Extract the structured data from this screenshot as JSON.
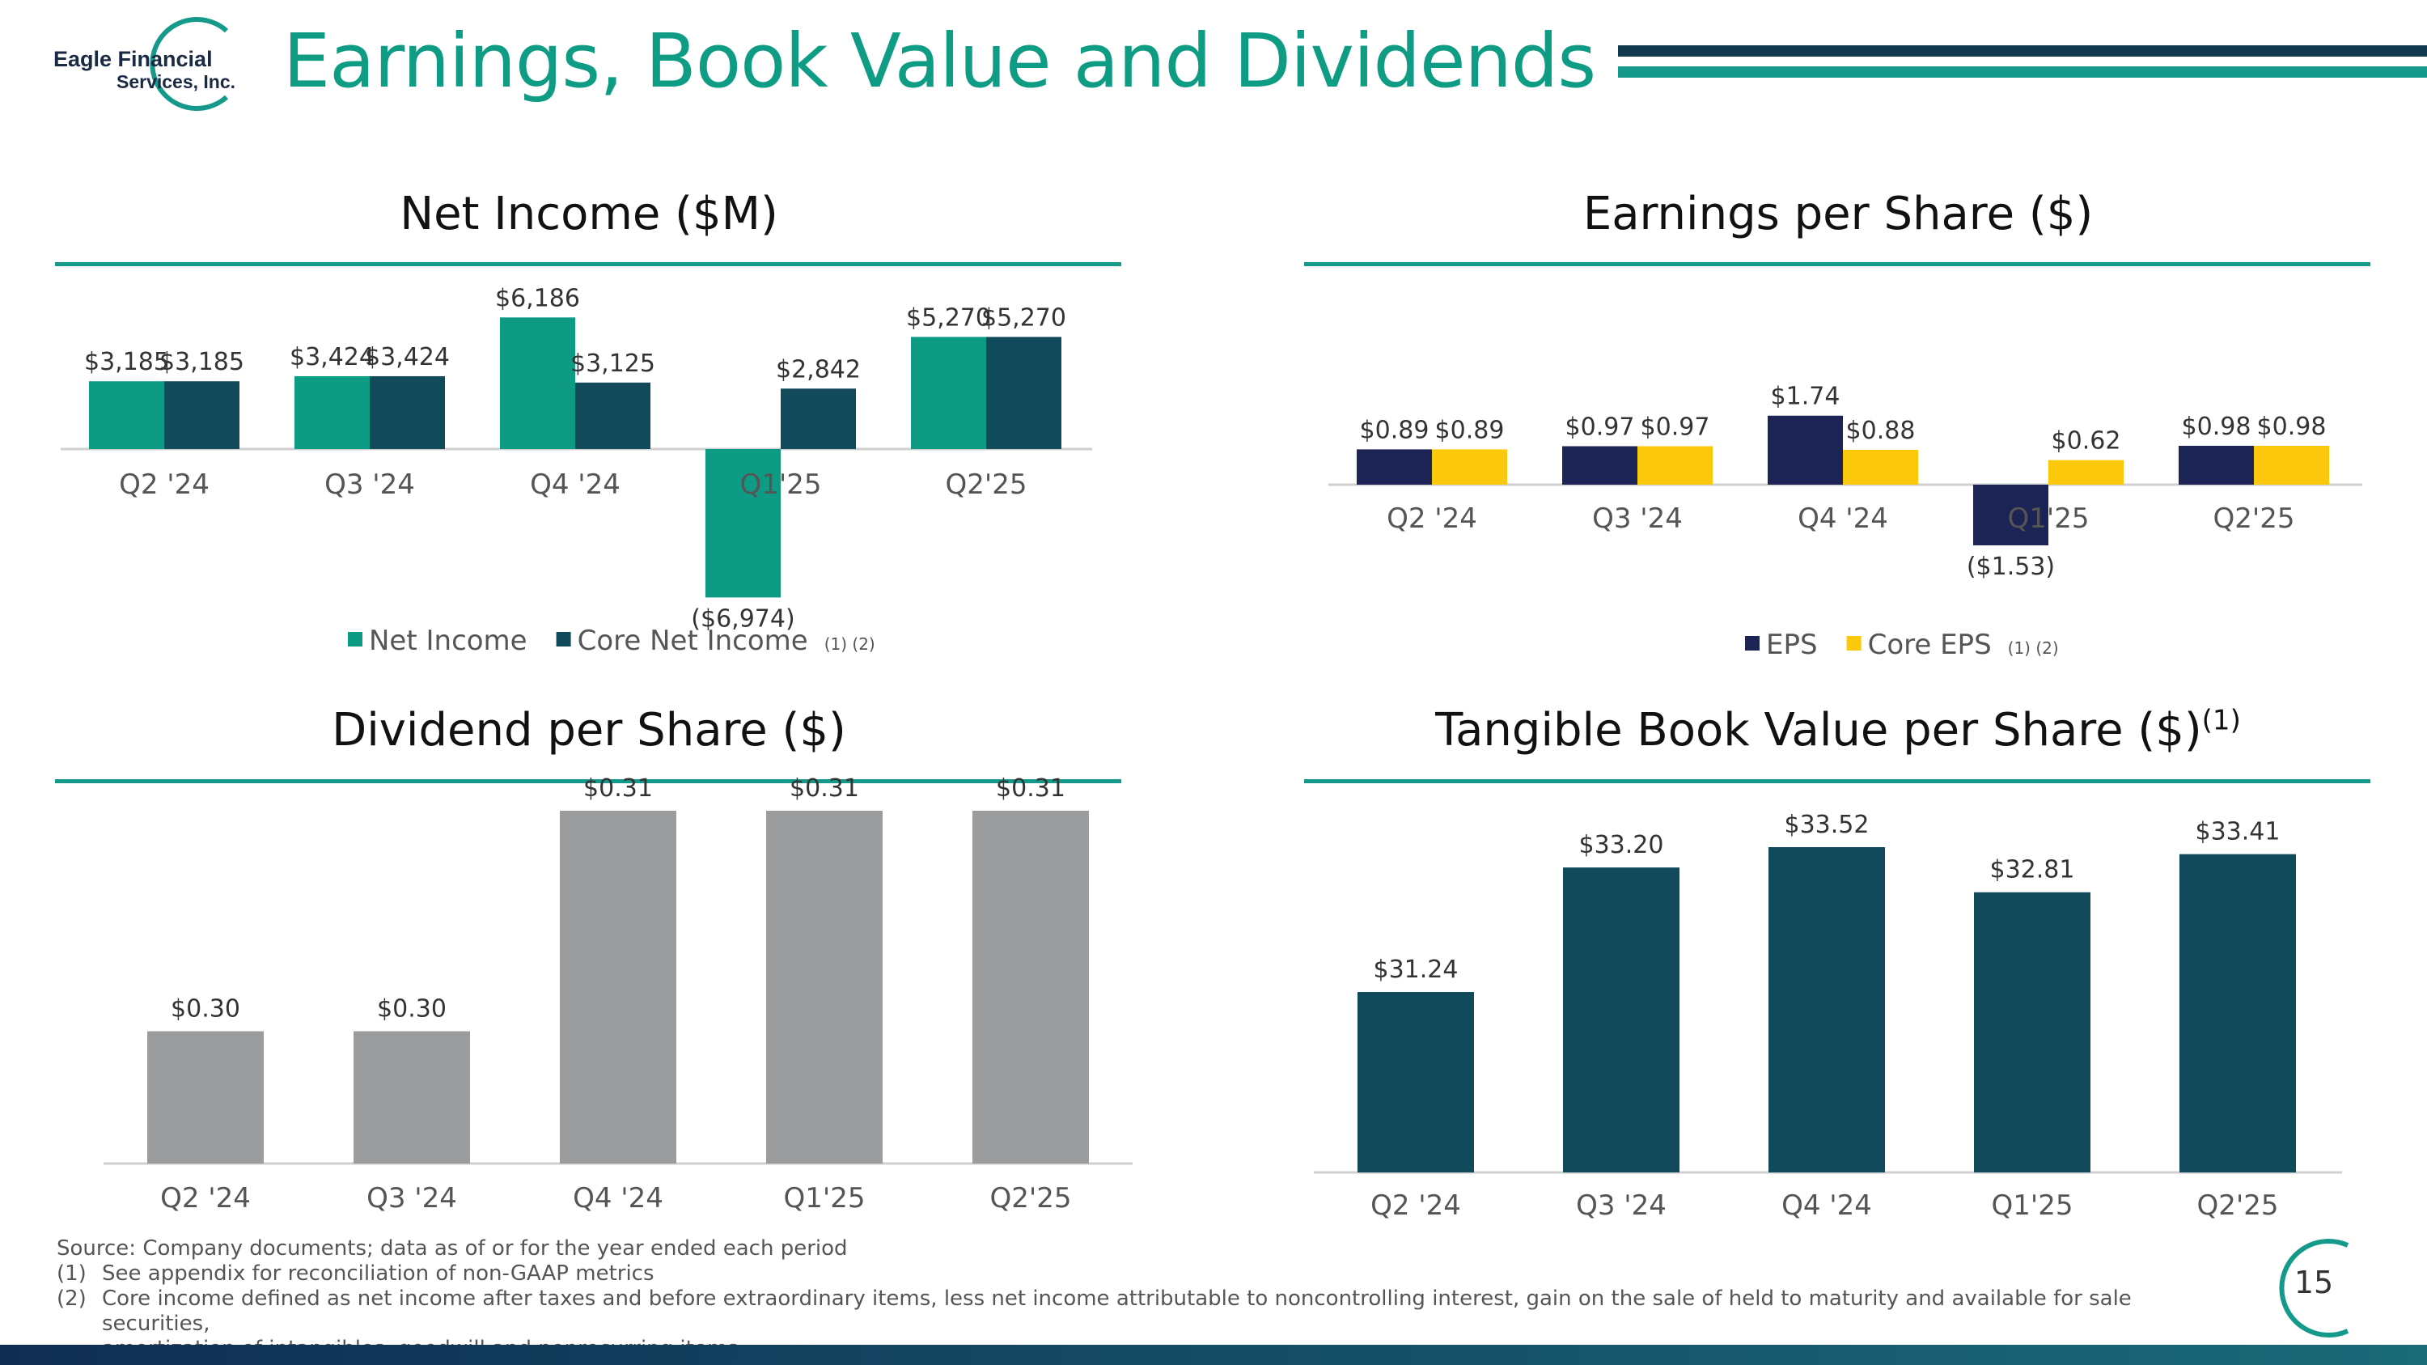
{
  "header": {
    "logo_line1": "Eagle Financial",
    "logo_line2": "Services, Inc.",
    "title": "Earnings, Book Value and Dividends"
  },
  "colors": {
    "teal": "#0e9b83",
    "dark_teal": "#114b5b",
    "navy": "#1c2355",
    "yellow": "#fcc80c",
    "gray": "#9b9c9e",
    "bvps": "#114b5b",
    "accent_rule": "#14998a"
  },
  "chart_data": [
    {
      "id": "net_income",
      "type": "bar",
      "title": "Net Income ($M)",
      "categories": [
        "Q2 '24",
        "Q3 '24",
        "Q4 '24",
        "Q1'25",
        "Q2'25"
      ],
      "series": [
        {
          "name": "Net Income",
          "values": [
            3.185,
            3.424,
            6.186,
            -6.974,
            5.27
          ],
          "labels": [
            "$3,185",
            "$3,424",
            "$6,186",
            "($6,974)",
            "$5,270"
          ]
        },
        {
          "name": "Core Net Income",
          "values": [
            3.185,
            3.424,
            3.125,
            2.842,
            5.27
          ],
          "labels": [
            "$3,185",
            "$3,424",
            "$3,125",
            "$2,842",
            "$5,270"
          ]
        }
      ],
      "legend_note": "(1) (2)",
      "legend_position": "bottom"
    },
    {
      "id": "eps",
      "type": "bar",
      "title": "Earnings per Share ($)",
      "categories": [
        "Q2 '24",
        "Q3 '24",
        "Q4 '24",
        "Q1'25",
        "Q2'25"
      ],
      "series": [
        {
          "name": "EPS",
          "values": [
            0.89,
            0.97,
            1.74,
            -1.53,
            0.98
          ],
          "labels": [
            "$0.89",
            "$0.97",
            "$1.74",
            "($1.53)",
            "$0.98"
          ]
        },
        {
          "name": "Core EPS",
          "values": [
            0.89,
            0.97,
            0.88,
            0.62,
            0.98
          ],
          "labels": [
            "$0.89",
            "$0.97",
            "$0.88",
            "$0.62",
            "$0.98"
          ]
        }
      ],
      "legend_note": "(1) (2)",
      "legend_position": "bottom"
    },
    {
      "id": "dps",
      "type": "bar",
      "title": "Dividend per Share ($)",
      "categories": [
        "Q2 '24",
        "Q3 '24",
        "Q4 '24",
        "Q1'25",
        "Q2'25"
      ],
      "values": [
        0.3,
        0.3,
        0.31,
        0.31,
        0.31
      ],
      "labels": [
        "$0.30",
        "$0.30",
        "$0.31",
        "$0.31",
        "$0.31"
      ]
    },
    {
      "id": "tbvps",
      "type": "bar",
      "title": "Tangible Book Value per Share ($)",
      "title_note": "(1)",
      "categories": [
        "Q2 '24",
        "Q3 '24",
        "Q4 '24",
        "Q1'25",
        "Q2'25"
      ],
      "values": [
        31.24,
        33.2,
        33.52,
        32.81,
        33.41
      ],
      "labels": [
        "$31.24",
        "$33.20",
        "$33.52",
        "$32.81",
        "$33.41"
      ]
    }
  ],
  "footnotes": {
    "source": "Source: Company documents; data as of or for the year ended each period",
    "note1_num": "(1)",
    "note1": "See appendix for reconciliation of non-GAAP metrics",
    "note2_num": "(2)",
    "note2_line1": "Core income defined as net income after taxes and before extraordinary items, less net income attributable to noncontrolling interest, gain on the sale of held to maturity and available for sale securities,",
    "note2_line2": "amortization of intangibles, goodwill and nonrecurring items"
  },
  "page_number": "15"
}
